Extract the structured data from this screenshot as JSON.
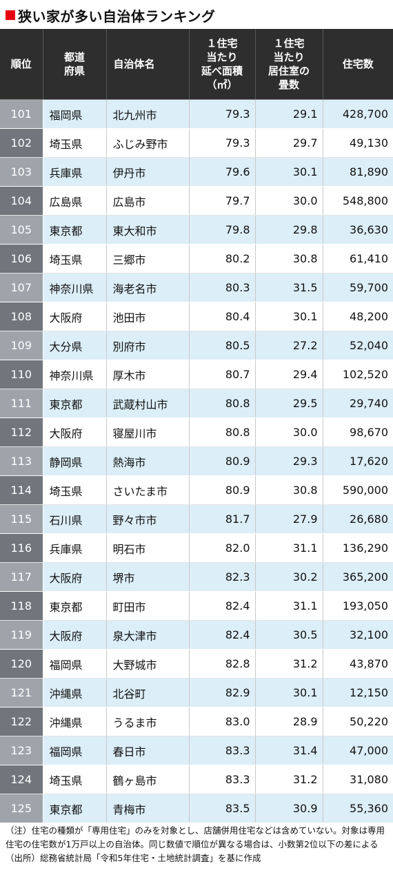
{
  "title": "狭い家が多い自治体ランキング",
  "colors": {
    "accent": "#e60012",
    "header_bg": "#2e2e2e",
    "row_alt": "#dceef8"
  },
  "headers": [
    "順位",
    "都道\n府県",
    "自治体名",
    "１住宅\n当たり\n延べ面積\n（㎡）",
    "１住宅\n当たり\n居住室の\n畳数",
    "住宅数"
  ],
  "rows": [
    [
      "101",
      "福岡県",
      "北九州市",
      "79.3",
      "29.1",
      "428,700"
    ],
    [
      "102",
      "埼玉県",
      "ふじみ野市",
      "79.3",
      "29.7",
      "49,130"
    ],
    [
      "103",
      "兵庫県",
      "伊丹市",
      "79.6",
      "30.1",
      "81,890"
    ],
    [
      "104",
      "広島県",
      "広島市",
      "79.7",
      "30.0",
      "548,800"
    ],
    [
      "105",
      "東京都",
      "東大和市",
      "79.8",
      "29.8",
      "36,630"
    ],
    [
      "106",
      "埼玉県",
      "三郷市",
      "80.2",
      "30.8",
      "61,410"
    ],
    [
      "107",
      "神奈川県",
      "海老名市",
      "80.3",
      "31.5",
      "59,700"
    ],
    [
      "108",
      "大阪府",
      "池田市",
      "80.4",
      "30.1",
      "48,200"
    ],
    [
      "109",
      "大分県",
      "別府市",
      "80.5",
      "27.2",
      "52,040"
    ],
    [
      "110",
      "神奈川県",
      "厚木市",
      "80.7",
      "29.4",
      "102,520"
    ],
    [
      "111",
      "東京都",
      "武蔵村山市",
      "80.8",
      "29.5",
      "29,740"
    ],
    [
      "112",
      "大阪府",
      "寝屋川市",
      "80.8",
      "30.0",
      "98,670"
    ],
    [
      "113",
      "静岡県",
      "熱海市",
      "80.9",
      "29.3",
      "17,620"
    ],
    [
      "114",
      "埼玉県",
      "さいたま市",
      "80.9",
      "30.8",
      "590,000"
    ],
    [
      "115",
      "石川県",
      "野々市市",
      "81.7",
      "27.9",
      "26,680"
    ],
    [
      "116",
      "兵庫県",
      "明石市",
      "82.0",
      "31.1",
      "136,290"
    ],
    [
      "117",
      "大阪府",
      "堺市",
      "82.3",
      "30.2",
      "365,200"
    ],
    [
      "118",
      "東京都",
      "町田市",
      "82.4",
      "31.1",
      "193,050"
    ],
    [
      "119",
      "大阪府",
      "泉大津市",
      "82.4",
      "30.5",
      "32,100"
    ],
    [
      "120",
      "福岡県",
      "大野城市",
      "82.8",
      "31.2",
      "43,870"
    ],
    [
      "121",
      "沖縄県",
      "北谷町",
      "82.9",
      "30.1",
      "12,150"
    ],
    [
      "122",
      "沖縄県",
      "うるま市",
      "83.0",
      "28.9",
      "50,220"
    ],
    [
      "123",
      "福岡県",
      "春日市",
      "83.3",
      "31.4",
      "47,000"
    ],
    [
      "124",
      "埼玉県",
      "鶴ヶ島市",
      "83.3",
      "31.2",
      "31,080"
    ],
    [
      "125",
      "東京都",
      "青梅市",
      "83.5",
      "30.9",
      "55,360"
    ]
  ],
  "notes": {
    "note": "（注）住宅の種類が「専用住宅」のみを対象とし、店舗併用住宅などは含めていない。対象は専用住宅の住宅数が1万戸以上の自治体。同じ数値で順位が異なる場合は、小数第2位以下の差による",
    "source": "（出所）総務省統計局「令和5年住宅・土地統計調査」を基に作成"
  }
}
